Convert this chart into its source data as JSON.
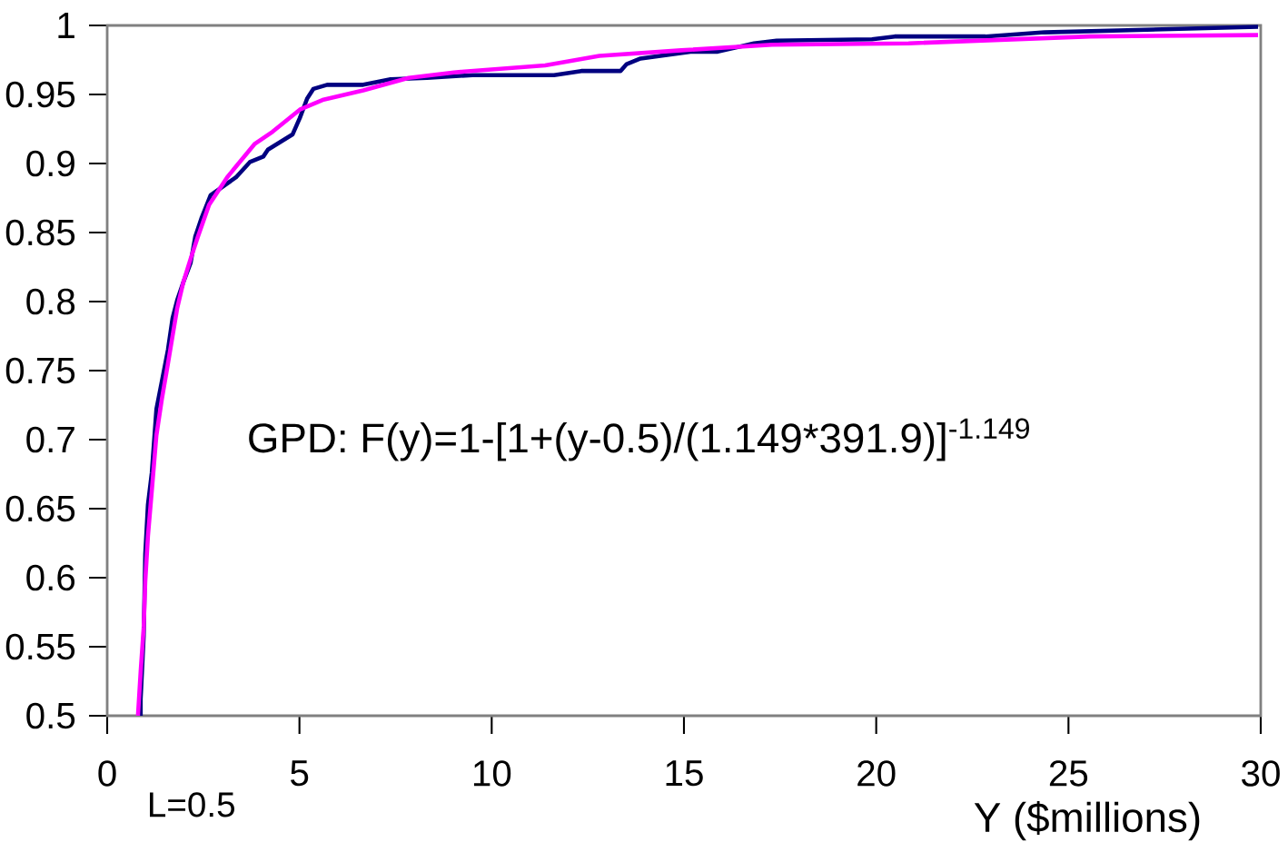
{
  "chart_data": {
    "type": "line",
    "xlabel": "Y ($millions)",
    "annotations": [
      "GPD: F(y)=1-[1+(y-0.5)/(1.149*391.9)]$^{-1.149}$",
      "L=0.5"
    ],
    "xlim": [
      0,
      30
    ],
    "ylim": [
      0.5,
      1
    ],
    "xticks": [
      0,
      5,
      10,
      15,
      20,
      25,
      30
    ],
    "yticks": [
      0.5,
      0.55,
      0.6,
      0.65,
      0.7,
      0.75,
      0.8,
      0.85,
      0.9,
      0.95,
      1
    ],
    "marker": "none",
    "line_style": "solid",
    "series": [
      {
        "color": "#000080",
        "x": [
          0.87,
          0.87,
          0.95,
          0.99,
          1.06,
          1.16,
          1.28,
          1.42,
          1.58,
          1.7,
          1.82,
          1.98,
          2.17,
          2.29,
          2.46,
          2.69,
          3.35,
          3.71,
          4.06,
          4.18,
          4.82,
          5.01,
          5.2,
          5.36,
          5.72,
          6.66,
          7.37,
          8.32,
          9.5,
          11.62,
          12.33,
          13.35,
          13.51,
          13.87,
          15.17,
          15.88,
          16.82,
          17.41,
          19.89,
          20.48,
          22.84,
          24.38,
          29.93
        ],
        "values": [
          0.5,
          0.512,
          0.558,
          0.617,
          0.653,
          0.676,
          0.722,
          0.742,
          0.765,
          0.788,
          0.801,
          0.814,
          0.828,
          0.847,
          0.861,
          0.877,
          0.89,
          0.901,
          0.905,
          0.91,
          0.921,
          0.933,
          0.947,
          0.954,
          0.957,
          0.957,
          0.961,
          0.962,
          0.964,
          0.964,
          0.967,
          0.967,
          0.972,
          0.976,
          0.981,
          0.981,
          0.987,
          0.989,
          0.99,
          0.992,
          0.992,
          0.995,
          0.999
        ]
      },
      {
        "color": "#ff00ff",
        "x": [
          0.8,
          0.87,
          0.95,
          0.99,
          1.06,
          1.16,
          1.28,
          1.42,
          1.58,
          1.7,
          1.82,
          1.98,
          2.17,
          2.36,
          2.65,
          3.12,
          3.83,
          4.3,
          5.01,
          5.6,
          6.66,
          7.84,
          9.02,
          11.39,
          12.8,
          14.93,
          17.29,
          20.84,
          25.56,
          29.93
        ],
        "values": [
          0.5,
          0.532,
          0.564,
          0.597,
          0.63,
          0.663,
          0.703,
          0.729,
          0.755,
          0.775,
          0.795,
          0.814,
          0.831,
          0.847,
          0.87,
          0.89,
          0.914,
          0.923,
          0.939,
          0.946,
          0.953,
          0.962,
          0.966,
          0.971,
          0.978,
          0.982,
          0.986,
          0.987,
          0.992,
          0.993
        ]
      }
    ]
  }
}
